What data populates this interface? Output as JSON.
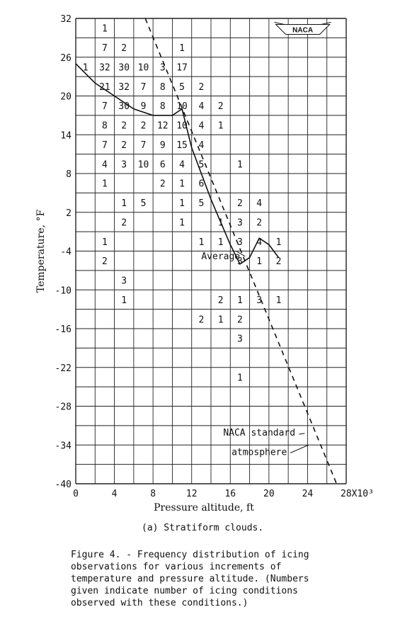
{
  "figure": {
    "subcaption": "(a) Stratiform clouds.",
    "caption": "Figure 4. - Frequency distribution of icing\n  observations for various increments of\n  temperature and pressure altitude.  (Numbers\n  given indicate number of icing conditions\n  observed with these conditions.)",
    "logo_text": "NACA"
  },
  "chart_data": {
    "type": "table",
    "description_free": true,
    "xlabel": "Pressure altitude, ft",
    "ylabel": "Temperature, °F",
    "x_ticks": [
      "0",
      "4",
      "8",
      "12",
      "16",
      "20",
      "24",
      "28X10³"
    ],
    "x_tick_values": [
      0,
      4000,
      8000,
      12000,
      16000,
      20000,
      24000,
      28000
    ],
    "y_ticks": [
      "32",
      "26",
      "20",
      "14",
      "8",
      "2",
      "-4",
      "-10",
      "-16",
      "-22",
      "-28",
      "-34",
      "-40"
    ],
    "y_tick_values": [
      32,
      26,
      20,
      14,
      8,
      2,
      -4,
      -10,
      -16,
      -22,
      -28,
      -34,
      -40
    ],
    "xlim": [
      0,
      28000
    ],
    "ylim": [
      -40,
      32
    ],
    "grid": true,
    "cell_width_ft": 2000,
    "cell_height_F": 3,
    "counts": [
      {
        "x": 3000,
        "y": 30.5,
        "n": "1"
      },
      {
        "x": 3000,
        "y": 27.5,
        "n": "7"
      },
      {
        "x": 5000,
        "y": 27.5,
        "n": "2"
      },
      {
        "x": 11000,
        "y": 27.5,
        "n": "1"
      },
      {
        "x": 1000,
        "y": 24.5,
        "n": "1"
      },
      {
        "x": 3000,
        "y": 24.5,
        "n": "32"
      },
      {
        "x": 5000,
        "y": 24.5,
        "n": "30"
      },
      {
        "x": 7000,
        "y": 24.5,
        "n": "10"
      },
      {
        "x": 9000,
        "y": 24.5,
        "n": "3"
      },
      {
        "x": 11000,
        "y": 24.5,
        "n": "17"
      },
      {
        "x": 3000,
        "y": 21.5,
        "n": "21"
      },
      {
        "x": 5000,
        "y": 21.5,
        "n": "32"
      },
      {
        "x": 7000,
        "y": 21.5,
        "n": "7"
      },
      {
        "x": 9000,
        "y": 21.5,
        "n": "8"
      },
      {
        "x": 11000,
        "y": 21.5,
        "n": "5"
      },
      {
        "x": 13000,
        "y": 21.5,
        "n": "2"
      },
      {
        "x": 3000,
        "y": 18.5,
        "n": "7"
      },
      {
        "x": 5000,
        "y": 18.5,
        "n": "30"
      },
      {
        "x": 7000,
        "y": 18.5,
        "n": "9"
      },
      {
        "x": 9000,
        "y": 18.5,
        "n": "8"
      },
      {
        "x": 11000,
        "y": 18.5,
        "n": "10"
      },
      {
        "x": 13000,
        "y": 18.5,
        "n": "4"
      },
      {
        "x": 15000,
        "y": 18.5,
        "n": "2"
      },
      {
        "x": 3000,
        "y": 15.5,
        "n": "8"
      },
      {
        "x": 5000,
        "y": 15.5,
        "n": "2"
      },
      {
        "x": 7000,
        "y": 15.5,
        "n": "2"
      },
      {
        "x": 9000,
        "y": 15.5,
        "n": "12"
      },
      {
        "x": 11000,
        "y": 15.5,
        "n": "10"
      },
      {
        "x": 13000,
        "y": 15.5,
        "n": "4"
      },
      {
        "x": 15000,
        "y": 15.5,
        "n": "1"
      },
      {
        "x": 3000,
        "y": 12.5,
        "n": "7"
      },
      {
        "x": 5000,
        "y": 12.5,
        "n": "2"
      },
      {
        "x": 7000,
        "y": 12.5,
        "n": "7"
      },
      {
        "x": 9000,
        "y": 12.5,
        "n": "9"
      },
      {
        "x": 11000,
        "y": 12.5,
        "n": "15"
      },
      {
        "x": 13000,
        "y": 12.5,
        "n": "4"
      },
      {
        "x": 3000,
        "y": 9.5,
        "n": "4"
      },
      {
        "x": 5000,
        "y": 9.5,
        "n": "3"
      },
      {
        "x": 7000,
        "y": 9.5,
        "n": "10"
      },
      {
        "x": 9000,
        "y": 9.5,
        "n": "6"
      },
      {
        "x": 11000,
        "y": 9.5,
        "n": "4"
      },
      {
        "x": 13000,
        "y": 9.5,
        "n": "5"
      },
      {
        "x": 17000,
        "y": 9.5,
        "n": "1"
      },
      {
        "x": 3000,
        "y": 6.5,
        "n": "1"
      },
      {
        "x": 9000,
        "y": 6.5,
        "n": "2"
      },
      {
        "x": 11000,
        "y": 6.5,
        "n": "1"
      },
      {
        "x": 13000,
        "y": 6.5,
        "n": "6"
      },
      {
        "x": 5000,
        "y": 3.5,
        "n": "1"
      },
      {
        "x": 7000,
        "y": 3.5,
        "n": "5"
      },
      {
        "x": 11000,
        "y": 3.5,
        "n": "1"
      },
      {
        "x": 13000,
        "y": 3.5,
        "n": "5"
      },
      {
        "x": 17000,
        "y": 3.5,
        "n": "2"
      },
      {
        "x": 19000,
        "y": 3.5,
        "n": "4"
      },
      {
        "x": 5000,
        "y": 0.5,
        "n": "2"
      },
      {
        "x": 11000,
        "y": 0.5,
        "n": "1"
      },
      {
        "x": 15000,
        "y": 0.5,
        "n": "1"
      },
      {
        "x": 17000,
        "y": 0.5,
        "n": "3"
      },
      {
        "x": 19000,
        "y": 0.5,
        "n": "2"
      },
      {
        "x": 3000,
        "y": -2.5,
        "n": "1"
      },
      {
        "x": 13000,
        "y": -2.5,
        "n": "1"
      },
      {
        "x": 15000,
        "y": -2.5,
        "n": "1"
      },
      {
        "x": 17000,
        "y": -2.5,
        "n": "3"
      },
      {
        "x": 19000,
        "y": -2.5,
        "n": "4"
      },
      {
        "x": 21000,
        "y": -2.5,
        "n": "1"
      },
      {
        "x": 3000,
        "y": -5.5,
        "n": "2"
      },
      {
        "x": 17000,
        "y": -5.5,
        "n": "3"
      },
      {
        "x": 19000,
        "y": -5.5,
        "n": "1"
      },
      {
        "x": 21000,
        "y": -5.5,
        "n": "2"
      },
      {
        "x": 5000,
        "y": -8.5,
        "n": "3"
      },
      {
        "x": 5000,
        "y": -11.5,
        "n": "1"
      },
      {
        "x": 15000,
        "y": -11.5,
        "n": "2"
      },
      {
        "x": 17000,
        "y": -11.5,
        "n": "1"
      },
      {
        "x": 19000,
        "y": -11.5,
        "n": "3"
      },
      {
        "x": 21000,
        "y": -11.5,
        "n": "1"
      },
      {
        "x": 13000,
        "y": -14.5,
        "n": "2"
      },
      {
        "x": 15000,
        "y": -14.5,
        "n": "1"
      },
      {
        "x": 17000,
        "y": -14.5,
        "n": "2"
      },
      {
        "x": 17000,
        "y": -17.5,
        "n": "3"
      },
      {
        "x": 17000,
        "y": -23.5,
        "n": "1"
      }
    ],
    "series": [
      {
        "name": "Average",
        "style": "solid",
        "x": [
          0,
          2000,
          4000,
          6000,
          8000,
          10000,
          11000,
          12000,
          14000,
          16000,
          17000,
          18000,
          19000,
          20000,
          21000
        ],
        "y": [
          25,
          22,
          20,
          18,
          17,
          17,
          18,
          12,
          4,
          -3,
          -6,
          -5,
          -2,
          -3,
          -5
        ]
      },
      {
        "name": "NACA standard atmosphere",
        "style": "dashed",
        "x": [
          7200,
          27000
        ],
        "y": [
          32,
          -40
        ]
      }
    ],
    "annotations": [
      {
        "text": "Average",
        "x": 13000,
        "y": -4.7
      },
      {
        "text": "NACA standard",
        "x": 19000,
        "y": -32
      },
      {
        "text": "atmosphere",
        "x": 19000,
        "y": -35
      }
    ]
  }
}
